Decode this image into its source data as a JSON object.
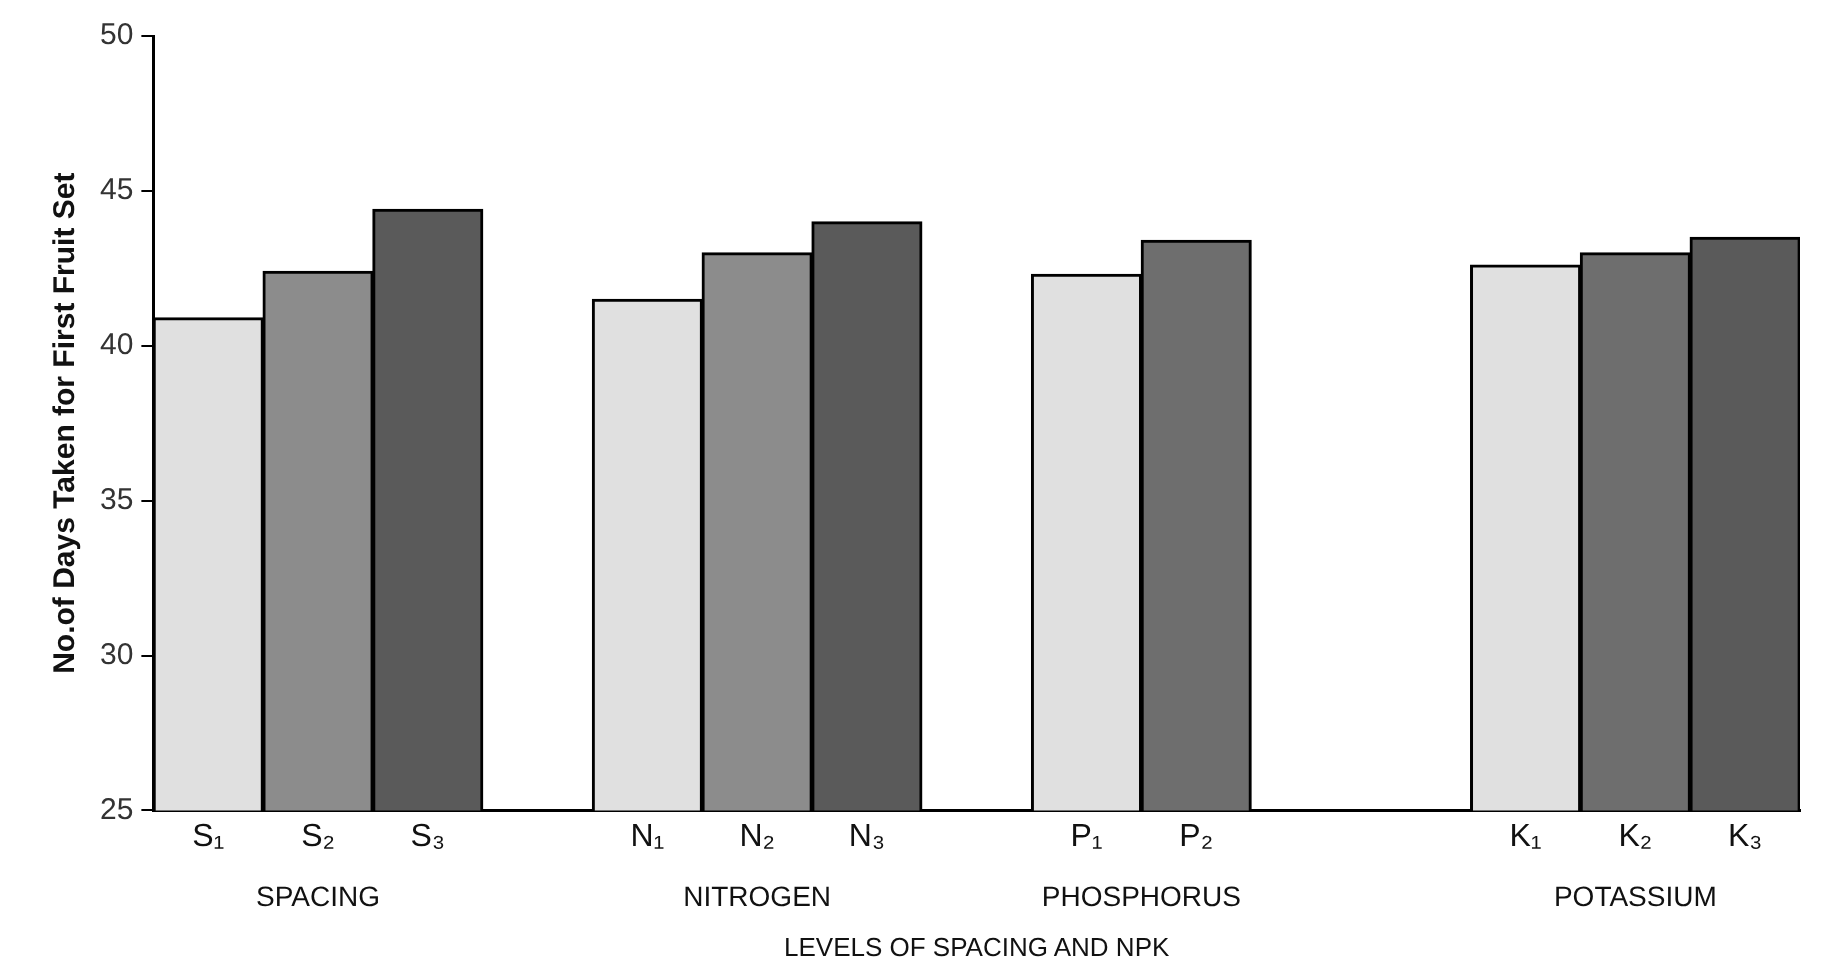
{
  "chart_data": {
    "type": "bar",
    "categories": [
      "S₁",
      "S₂",
      "S₃",
      null,
      "N₁",
      "N₂",
      "N₃",
      null,
      "P₁",
      "P₂",
      null,
      null,
      "K₁",
      "K₂",
      "K₃"
    ],
    "values": [
      40.9,
      42.4,
      44.4,
      null,
      41.5,
      43.0,
      44.0,
      null,
      42.3,
      43.4,
      null,
      null,
      42.6,
      43.0,
      43.5
    ],
    "colors": [
      "#e0e0e0",
      "#8c8c8c",
      "#5a5a5a",
      null,
      "#e0e0e0",
      "#8c8c8c",
      "#5a5a5a",
      null,
      "#e0e0e0",
      "#6e6e6e",
      null,
      null,
      "#e0e0e0",
      "#6e6e6e",
      "#5a5a5a"
    ],
    "ylabel": "No.of Days Taken for First Fruit Set",
    "xlabel": "LEVELS OF SPACING AND NPK",
    "annotations": [
      "SPACING",
      "NITROGEN",
      "PHOSPHORUS",
      "POTASSIUM"
    ],
    "ylim": [
      25,
      50
    ],
    "yticks": [
      25,
      30,
      35,
      40,
      45,
      50
    ],
    "grid": false,
    "legend": false
  }
}
